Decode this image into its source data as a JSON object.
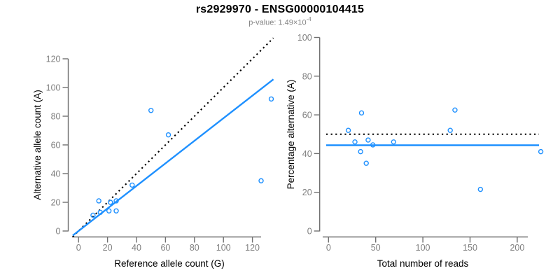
{
  "header": {
    "title": "rs2929970 - ENSG00000104415",
    "p_value_base": "p-value: 1.49×10",
    "p_value_exponent": "-4"
  },
  "colors": {
    "point_blue": "#1E90FF",
    "fit_line_blue": "#1E90FF",
    "dotted_line_black": "#000000",
    "axis_line_gray": "#707070",
    "tick_label_gray": "#7F7F7F",
    "axis_title_black": "#000000",
    "subtitle_gray": "#848484",
    "background": "#FFFFFF"
  },
  "chart_data": [
    {
      "type": "scatter",
      "name": "allele-counts",
      "xlabel": "Reference allele count (G)",
      "ylabel": "Alternative allele count (A)",
      "xticks": [
        0,
        20,
        40,
        60,
        80,
        100,
        120
      ],
      "yticks": [
        0,
        20,
        40,
        60,
        80,
        100,
        120
      ],
      "xlim": [
        0,
        134
      ],
      "ylim": [
        0,
        134
      ],
      "grid": false,
      "points": [
        [
          10,
          11
        ],
        [
          14,
          21
        ],
        [
          15,
          13
        ],
        [
          21,
          14
        ],
        [
          22,
          20
        ],
        [
          26,
          14
        ],
        [
          26,
          21
        ],
        [
          37,
          32
        ],
        [
          50,
          84
        ],
        [
          62,
          67
        ],
        [
          126,
          35
        ],
        [
          133,
          92
        ]
      ],
      "lines": [
        {
          "label": "identity y = x",
          "style": "dotted",
          "color": "#000000",
          "slope": 1,
          "intercept": 0
        },
        {
          "label": "fit",
          "style": "solid",
          "color": "#1E90FF",
          "slope": 0.786,
          "intercept": 0
        }
      ]
    },
    {
      "type": "scatter",
      "name": "percentage-alternative",
      "xlabel": "Total number of reads",
      "ylabel": "Percentage alternative (A)",
      "xticks": [
        0,
        50,
        100,
        150,
        200
      ],
      "yticks": [
        0,
        20,
        40,
        60,
        80,
        100
      ],
      "xlim": [
        0,
        228
      ],
      "ylim": [
        0,
        100
      ],
      "grid": false,
      "points": [
        [
          21,
          52
        ],
        [
          28,
          46
        ],
        [
          35,
          61
        ],
        [
          34,
          41
        ],
        [
          40,
          35
        ],
        [
          42,
          47
        ],
        [
          47,
          44.5
        ],
        [
          69,
          46
        ],
        [
          129,
          52
        ],
        [
          134,
          62.5
        ],
        [
          161,
          21.5
        ],
        [
          225,
          41
        ]
      ],
      "lines": [
        {
          "label": "expected 50%",
          "style": "dotted",
          "color": "#000000",
          "yvalue": 50
        },
        {
          "label": "mean alternative %",
          "style": "solid",
          "color": "#1E90FF",
          "yvalue": 44.3
        }
      ]
    }
  ]
}
